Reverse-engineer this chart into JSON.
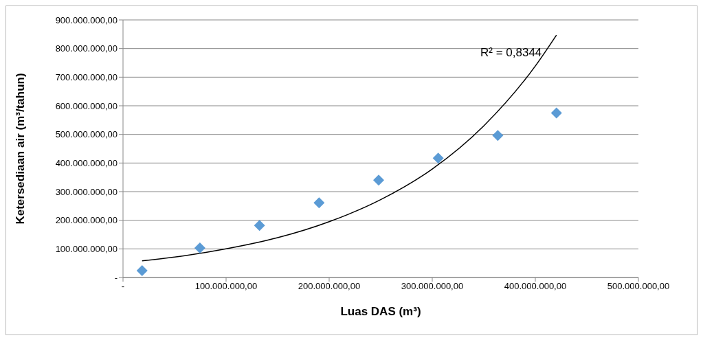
{
  "chart_data": {
    "type": "scatter",
    "xlabel": "Luas DAS (m³)",
    "ylabel": "Ketersediaan air (m³/tahun)",
    "annotations": [
      "R² = 0,8344"
    ],
    "xlim": [
      0,
      500000000
    ],
    "ylim": [
      0,
      900000000
    ],
    "xticks": [
      {
        "value": 0,
        "label": "-"
      },
      {
        "value": 100000000,
        "label": "100.000.000,00"
      },
      {
        "value": 200000000,
        "label": "200.000.000,00"
      },
      {
        "value": 300000000,
        "label": "300.000.000,00"
      },
      {
        "value": 400000000,
        "label": "400.000.000,00"
      },
      {
        "value": 500000000,
        "label": "500.000.000,00"
      }
    ],
    "yticks": [
      {
        "value": 0,
        "label": "-"
      },
      {
        "value": 100000000,
        "label": "100.000.000,00"
      },
      {
        "value": 200000000,
        "label": "200.000.000,00"
      },
      {
        "value": 300000000,
        "label": "300.000.000,00"
      },
      {
        "value": 400000000,
        "label": "400.000.000,00"
      },
      {
        "value": 500000000,
        "label": "500.000.000,00"
      },
      {
        "value": 600000000,
        "label": "600.000.000,00"
      },
      {
        "value": 700000000,
        "label": "700.000.000,00"
      },
      {
        "value": 800000000,
        "label": "800.000.000,00"
      },
      {
        "value": 900000000,
        "label": "900.000.000,00"
      }
    ],
    "grid": "y",
    "legend": false,
    "marker": "diamond",
    "series": [
      {
        "color": "#5b9bd5",
        "x": [
          18500000,
          74600000,
          132400000,
          190200000,
          248000000,
          305800000,
          363600000,
          420500000
        ],
        "values": [
          24000000,
          103000000,
          182000000,
          261000000,
          340000000,
          417000000,
          496000000,
          575000000
        ]
      },
      {
        "type": "line",
        "color": "#000000",
        "marker": "none",
        "line_style": "solid",
        "x": [
          18500000,
          60000000,
          100000000,
          150000000,
          200000000,
          250000000,
          300000000,
          350000000,
          400000000,
          420500000
        ],
        "values": [
          58000000,
          76000000,
          100000000,
          139000000,
          195000000,
          272000000,
          379000000,
          530000000,
          739000000,
          847000000
        ]
      }
    ]
  }
}
